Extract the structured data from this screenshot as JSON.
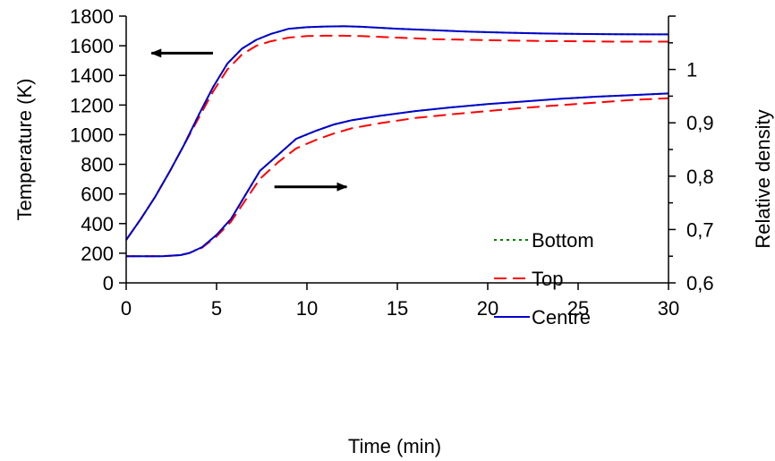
{
  "chart_data": {
    "type": "line",
    "title": "",
    "xlabel": "Time (min)",
    "ylabel": "Temperature (K)",
    "y2label": "Relative density",
    "xlim": [
      0,
      30
    ],
    "ylim": [
      0,
      1800
    ],
    "y2lim": [
      0.6,
      1.1
    ],
    "xticks": [
      "0",
      "5",
      "10",
      "15",
      "20",
      "25",
      "30"
    ],
    "yticks": [
      "0",
      "200",
      "400",
      "600",
      "800",
      "1000",
      "1200",
      "1400",
      "1600",
      "1800"
    ],
    "y2ticks": [
      "0,6",
      "0,7",
      "0,8",
      "0,9",
      "1"
    ],
    "grid": false,
    "legend_position": "bottom-right",
    "legend": [
      {
        "key": "bottom",
        "label": "Bottom",
        "color": "#008000",
        "dash": "dotted"
      },
      {
        "key": "top",
        "label": "Top",
        "color": "#ff0000",
        "dash": "dashed"
      },
      {
        "key": "centre",
        "label": "Centre",
        "color": "#0000cc",
        "dash": "solid"
      }
    ],
    "series": [
      {
        "key": "centre",
        "quantity": "temperature",
        "axis": "left",
        "x": [
          0,
          0.8,
          1.6,
          2.4,
          3.2,
          4.0,
          4.8,
          5.6,
          6.4,
          7.2,
          8.0,
          9.0,
          10.0,
          11.0,
          12.0,
          13.0,
          15.0,
          17.0,
          19.0,
          21.0,
          23.0,
          25.0,
          27.0,
          29.0,
          30.0
        ],
        "y": [
          290,
          430,
          580,
          750,
          930,
          1130,
          1320,
          1480,
          1580,
          1640,
          1680,
          1715,
          1725,
          1730,
          1732,
          1728,
          1715,
          1705,
          1695,
          1688,
          1683,
          1680,
          1678,
          1677,
          1677
        ]
      },
      {
        "key": "top",
        "quantity": "temperature",
        "axis": "left",
        "x": [
          0,
          0.8,
          1.6,
          2.4,
          3.2,
          4.0,
          4.8,
          5.6,
          6.4,
          7.2,
          8.0,
          9.0,
          10.0,
          11.0,
          12.0,
          13.0,
          15.0,
          17.0,
          19.0,
          21.0,
          23.0,
          25.0,
          27.0,
          29.0,
          30.0
        ],
        "y": [
          290,
          430,
          580,
          750,
          930,
          1110,
          1290,
          1440,
          1540,
          1600,
          1630,
          1655,
          1665,
          1668,
          1668,
          1665,
          1655,
          1645,
          1640,
          1636,
          1632,
          1630,
          1628,
          1628,
          1628
        ]
      },
      {
        "key": "bottom",
        "quantity": "temperature",
        "axis": "left",
        "x": [
          0,
          0.8,
          1.6,
          2.4,
          3.2,
          4.0,
          4.8,
          5.6,
          6.4,
          7.2,
          8.0,
          9.0,
          10.0,
          11.0,
          12.0,
          13.0,
          15.0,
          17.0,
          19.0,
          21.0,
          23.0,
          25.0,
          27.0,
          29.0,
          30.0
        ],
        "y": [
          290,
          430,
          580,
          750,
          930,
          1130,
          1320,
          1480,
          1580,
          1640,
          1680,
          1715,
          1725,
          1730,
          1732,
          1728,
          1715,
          1705,
          1695,
          1688,
          1683,
          1680,
          1678,
          1677,
          1677
        ]
      },
      {
        "key": "centre",
        "quantity": "relative density",
        "axis": "right",
        "x": [
          0,
          1,
          2,
          3,
          3.5,
          4.2,
          5.0,
          5.8,
          6.6,
          7.4,
          8.4,
          9.4,
          10.5,
          11.5,
          12.5,
          14.0,
          16.0,
          18.0,
          20.0,
          22.0,
          24.0,
          26.0,
          28.0,
          30.0
        ],
        "y": [
          0.65,
          0.65,
          0.65,
          0.652,
          0.656,
          0.667,
          0.69,
          0.72,
          0.765,
          0.81,
          0.84,
          0.87,
          0.885,
          0.897,
          0.905,
          0.913,
          0.922,
          0.929,
          0.935,
          0.94,
          0.945,
          0.949,
          0.952,
          0.955
        ]
      },
      {
        "key": "top",
        "quantity": "relative density",
        "axis": "right",
        "x": [
          0,
          1,
          2,
          3,
          3.5,
          4.2,
          5.0,
          5.8,
          6.6,
          7.4,
          8.4,
          9.4,
          10.5,
          11.5,
          12.5,
          14.0,
          16.0,
          18.0,
          20.0,
          22.0,
          24.0,
          26.0,
          28.0,
          30.0
        ],
        "y": [
          0.65,
          0.65,
          0.65,
          0.652,
          0.656,
          0.666,
          0.687,
          0.715,
          0.755,
          0.795,
          0.826,
          0.852,
          0.868,
          0.88,
          0.89,
          0.899,
          0.909,
          0.916,
          0.922,
          0.928,
          0.933,
          0.938,
          0.943,
          0.946
        ]
      },
      {
        "key": "bottom",
        "quantity": "relative density",
        "axis": "right",
        "x": [
          0,
          1,
          2,
          3,
          3.5,
          4.2,
          5.0,
          5.8,
          6.6,
          7.4,
          8.4,
          9.4,
          10.5,
          11.5,
          12.5,
          14.0,
          16.0,
          18.0,
          20.0,
          22.0,
          24.0,
          26.0,
          28.0,
          30.0
        ],
        "y": [
          0.65,
          0.65,
          0.65,
          0.652,
          0.656,
          0.667,
          0.69,
          0.72,
          0.765,
          0.81,
          0.84,
          0.87,
          0.885,
          0.897,
          0.905,
          0.913,
          0.922,
          0.929,
          0.935,
          0.94,
          0.945,
          0.949,
          0.952,
          0.955
        ]
      }
    ],
    "annotations": [
      {
        "type": "arrow",
        "direction": "left",
        "points_to_axis": "left",
        "x_from": 4.8,
        "x_to": 1.4,
        "y": 1550,
        "axis": "left"
      },
      {
        "type": "arrow",
        "direction": "right",
        "points_to_axis": "right",
        "x_from": 8.2,
        "x_to": 12.2,
        "y": 0.78,
        "axis": "right"
      }
    ]
  }
}
